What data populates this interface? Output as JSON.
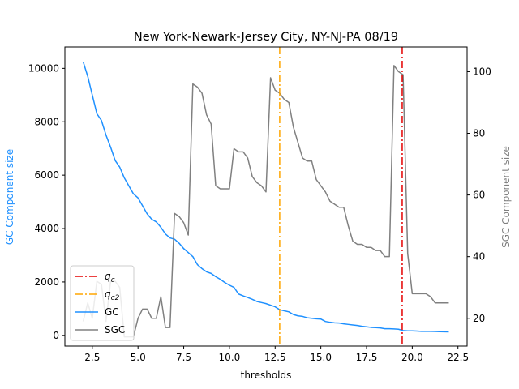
{
  "chart_data": {
    "type": "line",
    "title": "New York-Newark-Jersey City, NY-NJ-PA 08/19",
    "xlabel": "thresholds",
    "ylabel_left": "GC Component size",
    "ylabel_right": "SGC Component size",
    "xlim": [
      1.0,
      23.0
    ],
    "ylim_left": [
      -400,
      10800
    ],
    "ylim_right": [
      11,
      108
    ],
    "xticks": [
      2.5,
      5.0,
      7.5,
      10.0,
      12.5,
      15.0,
      17.5,
      20.0,
      22.5
    ],
    "xtick_labels": [
      "2.5",
      "5.0",
      "7.5",
      "10.0",
      "12.5",
      "15.0",
      "17.5",
      "20.0",
      "22.5"
    ],
    "yticks_left": [
      0,
      2000,
      4000,
      6000,
      8000,
      10000
    ],
    "yticks_right": [
      20,
      40,
      60,
      80,
      100
    ],
    "legend_position": "lower-left",
    "vlines": [
      {
        "name": "q_c",
        "label_main": "q",
        "label_sub": "c",
        "x": 19.45,
        "color": "#e50000",
        "dash": "dashdot"
      },
      {
        "name": "q_c2",
        "label_main": "q",
        "label_sub": "c2",
        "x": 12.75,
        "color": "#ffa500",
        "dash": "dashdot"
      }
    ],
    "series": [
      {
        "name": "GC",
        "axis": "left",
        "color": "#1e90ff",
        "x": [
          2.0,
          2.25,
          2.5,
          2.75,
          3.0,
          3.25,
          3.5,
          3.75,
          4.0,
          4.25,
          4.5,
          4.75,
          5.0,
          5.25,
          5.5,
          5.75,
          6.0,
          6.25,
          6.5,
          6.75,
          7.0,
          7.25,
          7.5,
          7.75,
          8.0,
          8.25,
          8.5,
          8.75,
          9.0,
          9.25,
          9.5,
          9.75,
          10.0,
          10.25,
          10.5,
          10.75,
          11.0,
          11.25,
          11.5,
          11.75,
          12.0,
          12.25,
          12.5,
          12.75,
          13.0,
          13.25,
          13.5,
          13.75,
          14.0,
          14.25,
          14.5,
          14.75,
          15.0,
          15.25,
          15.5,
          15.75,
          16.0,
          16.25,
          16.5,
          16.75,
          17.0,
          17.25,
          17.5,
          17.75,
          18.0,
          18.25,
          18.5,
          18.75,
          19.0,
          19.25,
          19.5,
          19.75,
          20.0,
          20.25,
          20.5,
          20.75,
          21.0,
          21.25,
          21.5,
          21.75,
          22.0
        ],
        "values": [
          10250,
          9700,
          9000,
          8300,
          8050,
          7500,
          7050,
          6550,
          6300,
          5900,
          5600,
          5300,
          5150,
          4850,
          4550,
          4350,
          4250,
          4050,
          3800,
          3650,
          3600,
          3450,
          3250,
          3100,
          2950,
          2650,
          2500,
          2380,
          2320,
          2200,
          2100,
          1980,
          1880,
          1800,
          1550,
          1480,
          1420,
          1350,
          1270,
          1230,
          1190,
          1130,
          1070,
          960,
          920,
          880,
          780,
          730,
          710,
          660,
          640,
          620,
          610,
          520,
          490,
          470,
          460,
          430,
          410,
          390,
          370,
          340,
          320,
          300,
          290,
          280,
          250,
          250,
          240,
          230,
          180,
          170,
          170,
          160,
          150,
          150,
          150,
          145,
          140,
          135,
          130
        ]
      },
      {
        "name": "SGC",
        "axis": "right",
        "color": "#808080",
        "x": [
          2.0,
          2.25,
          2.5,
          2.75,
          3.0,
          3.25,
          3.5,
          3.75,
          4.0,
          4.25,
          4.5,
          4.75,
          5.0,
          5.25,
          5.5,
          5.75,
          6.0,
          6.25,
          6.5,
          6.75,
          7.0,
          7.25,
          7.5,
          7.75,
          8.0,
          8.25,
          8.5,
          8.75,
          9.0,
          9.25,
          9.5,
          9.75,
          10.0,
          10.25,
          10.5,
          10.75,
          11.0,
          11.25,
          11.5,
          11.75,
          12.0,
          12.25,
          12.5,
          12.75,
          13.0,
          13.25,
          13.5,
          13.75,
          14.0,
          14.25,
          14.5,
          14.75,
          15.0,
          15.25,
          15.5,
          15.75,
          16.0,
          16.25,
          16.5,
          16.75,
          17.0,
          17.25,
          17.5,
          17.75,
          18.0,
          18.25,
          18.5,
          18.75,
          19.0,
          19.25,
          19.5,
          19.75,
          20.0,
          20.25,
          20.5,
          20.75,
          21.0,
          21.25,
          21.5,
          21.75,
          22.0
        ],
        "values": [
          19,
          25,
          20,
          32,
          31,
          19,
          32,
          32,
          30,
          14,
          14,
          14,
          20,
          23,
          23,
          20,
          20,
          27,
          17,
          17,
          54,
          53,
          51,
          47,
          96,
          95,
          93,
          86,
          83,
          63,
          62,
          62,
          62,
          75,
          74,
          74,
          72,
          66,
          64,
          63,
          61,
          98,
          94,
          93,
          91,
          90,
          82,
          77,
          72,
          71,
          71,
          65,
          63,
          61,
          58,
          57,
          56,
          56,
          50,
          45,
          44,
          44,
          43,
          43,
          42,
          42,
          40,
          40,
          102,
          100,
          99,
          41,
          28,
          28,
          28,
          28,
          27,
          25,
          25,
          25,
          25
        ]
      }
    ]
  }
}
